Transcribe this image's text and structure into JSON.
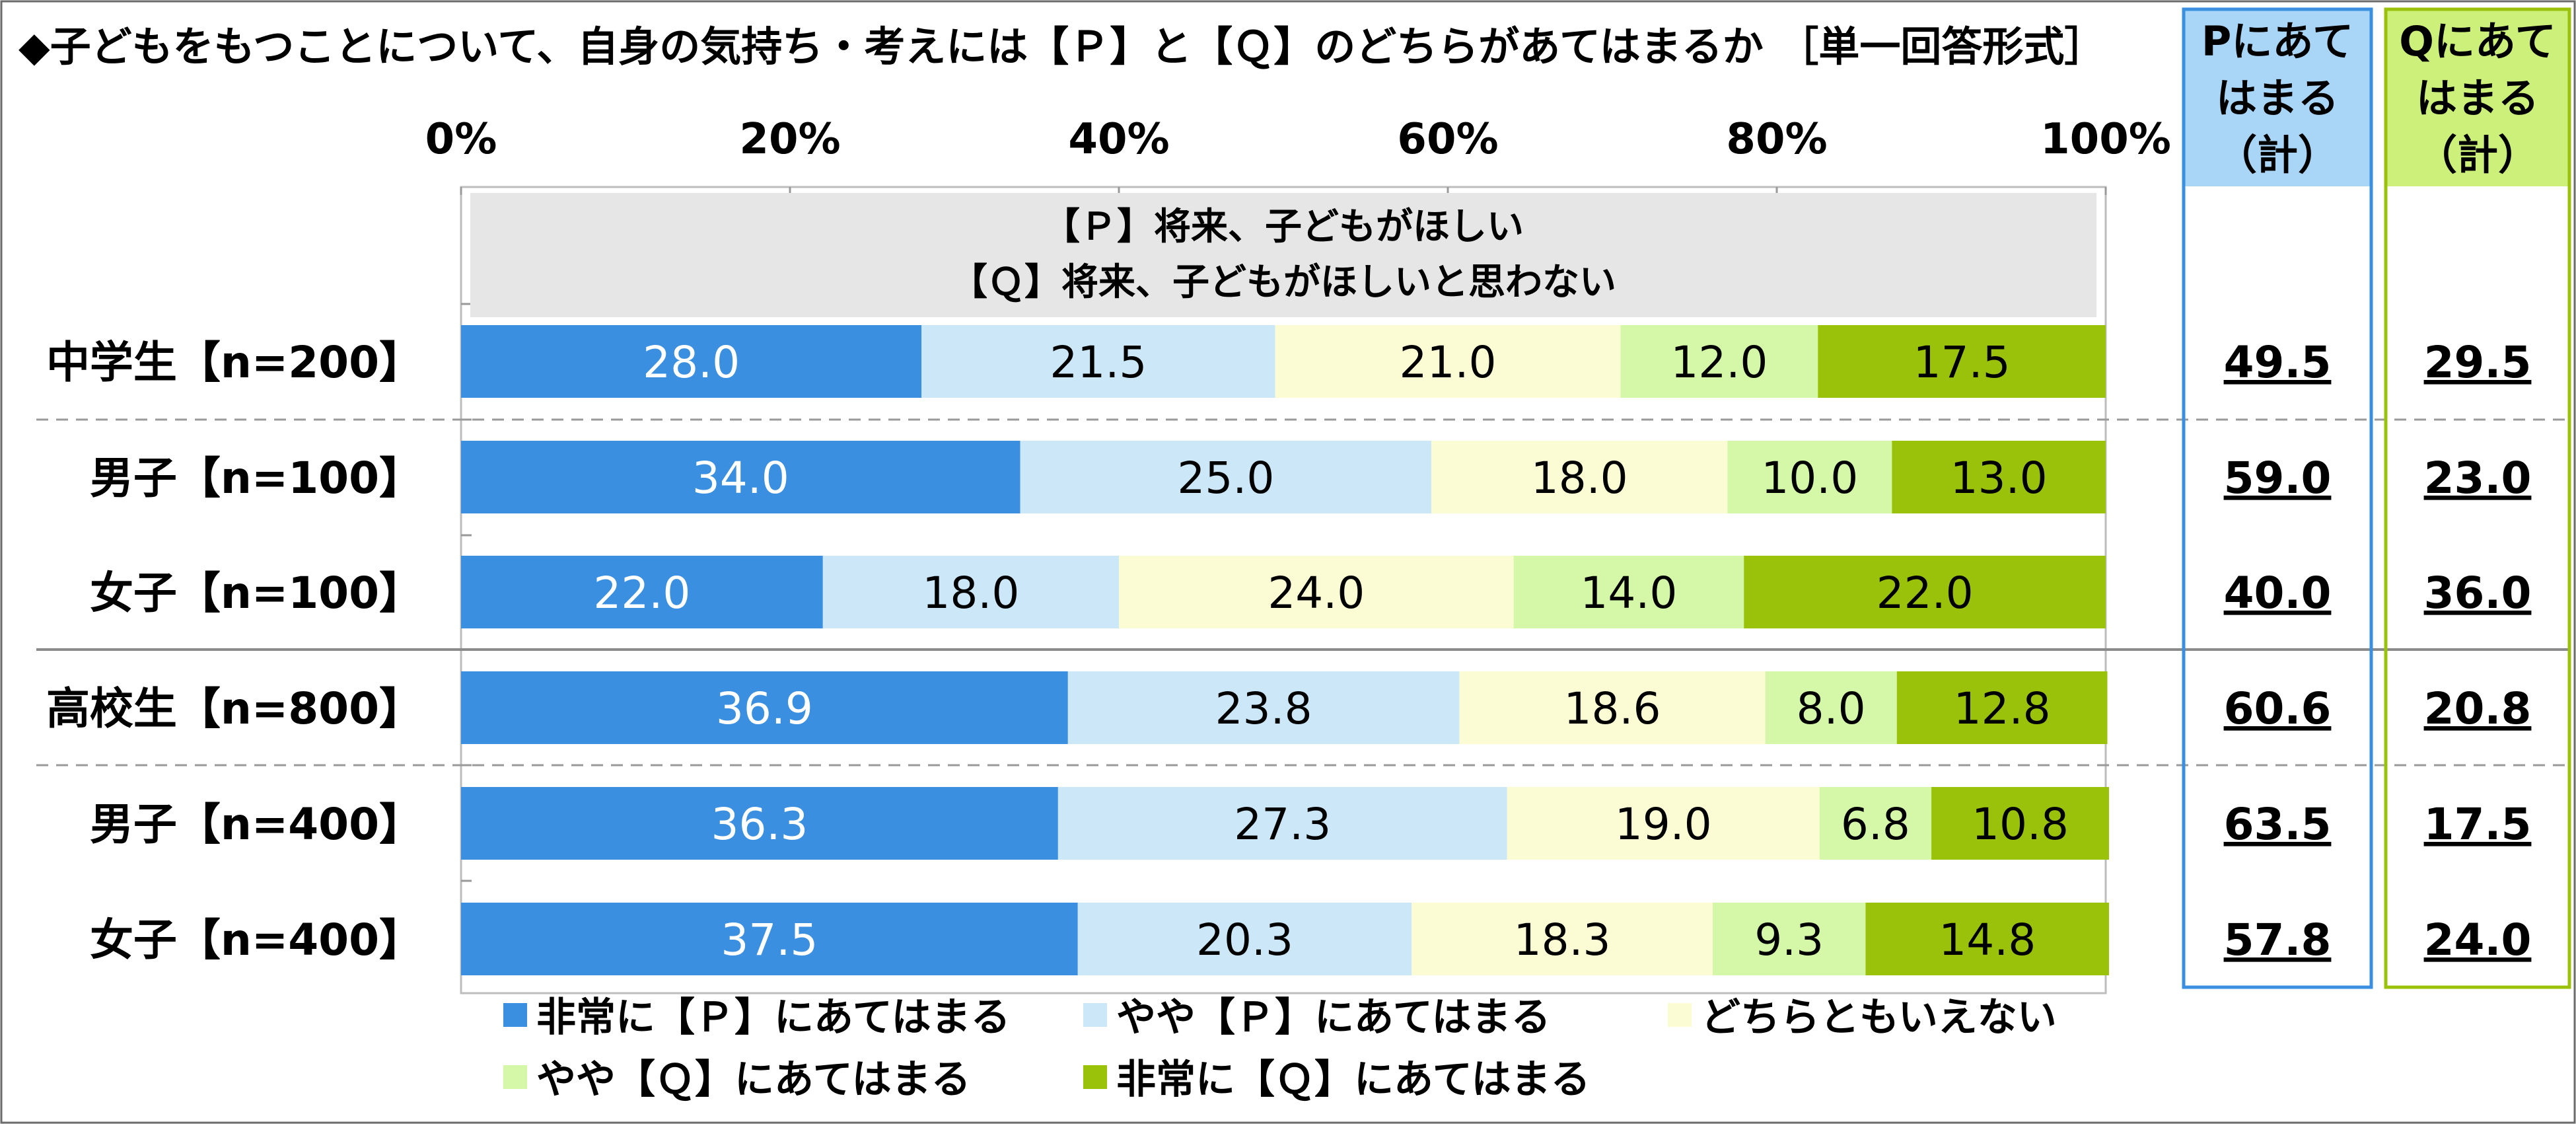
{
  "chart_data": {
    "type": "bar",
    "orientation": "horizontal",
    "stacked": true,
    "title": "◆子どもをもつことについて、自身の気持ち・考えには【Ｐ】と【Ｑ】のどちらがあてはまるか ［単一回答形式］",
    "x_ticks": [
      "0%",
      "20%",
      "40%",
      "60%",
      "80%",
      "100%"
    ],
    "xlim": [
      0,
      100
    ],
    "note_lines": [
      "【Ｐ】将来、子どもがほしい",
      "【Ｑ】将来、子どもがほしいと思わない"
    ],
    "categories": [
      "中学生【n=200】",
      "男子【n=100】",
      "女子【n=100】",
      "高校生【n=800】",
      "男子【n=400】",
      "女子【n=400】"
    ],
    "series": [
      {
        "name": "非常に【Ｐ】にあてはまる",
        "color": "#3a8fe0",
        "label_color": "#ffffff",
        "values": [
          28.0,
          34.0,
          22.0,
          36.9,
          36.3,
          37.5
        ]
      },
      {
        "name": "やや【Ｐ】にあてはまる",
        "color": "#cce8f8",
        "label_color": "#000000",
        "values": [
          21.5,
          25.0,
          18.0,
          23.8,
          27.3,
          20.3
        ]
      },
      {
        "name": "どちらともいえない",
        "color": "#fcfcd4",
        "label_color": "#000000",
        "values": [
          21.0,
          18.0,
          24.0,
          18.6,
          19.0,
          18.3
        ]
      },
      {
        "name": "やや【Ｑ】にあてはまる",
        "color": "#d5f7a8",
        "label_color": "#000000",
        "values": [
          12.0,
          10.0,
          14.0,
          8.0,
          6.8,
          9.3
        ]
      },
      {
        "name": "非常に【Ｑ】にあてはまる",
        "color": "#9ac20a",
        "label_color": "#000000",
        "values": [
          17.5,
          13.0,
          22.0,
          12.8,
          10.8,
          14.8
        ]
      }
    ],
    "value_labels": [
      [
        "28.0",
        "21.5",
        "21.0",
        "12.0",
        "17.5"
      ],
      [
        "34.0",
        "25.0",
        "18.0",
        "10.0",
        "13.0"
      ],
      [
        "22.0",
        "18.0",
        "24.0",
        "14.0",
        "22.0"
      ],
      [
        "36.9",
        "23.8",
        "18.6",
        "8.0",
        "12.8"
      ],
      [
        "36.3",
        "27.3",
        "19.0",
        "6.8",
        "10.8"
      ],
      [
        "37.5",
        "20.3",
        "18.3",
        "9.3",
        "14.8"
      ]
    ],
    "totals": [
      {
        "header": [
          "Pにあて",
          "はまる",
          "（計）"
        ],
        "border_color": "#3a8fe0",
        "header_fill": "#a9d6f7",
        "values": [
          "49.5",
          "59.0",
          "40.0",
          "60.6",
          "63.5",
          "57.8"
        ]
      },
      {
        "header": [
          "Qにあて",
          "はまる",
          "（計）"
        ],
        "border_color": "#9ac20a",
        "header_fill": "#ccf07a",
        "values": [
          "29.5",
          "23.0",
          "36.0",
          "20.8",
          "17.5",
          "24.0"
        ]
      }
    ]
  }
}
